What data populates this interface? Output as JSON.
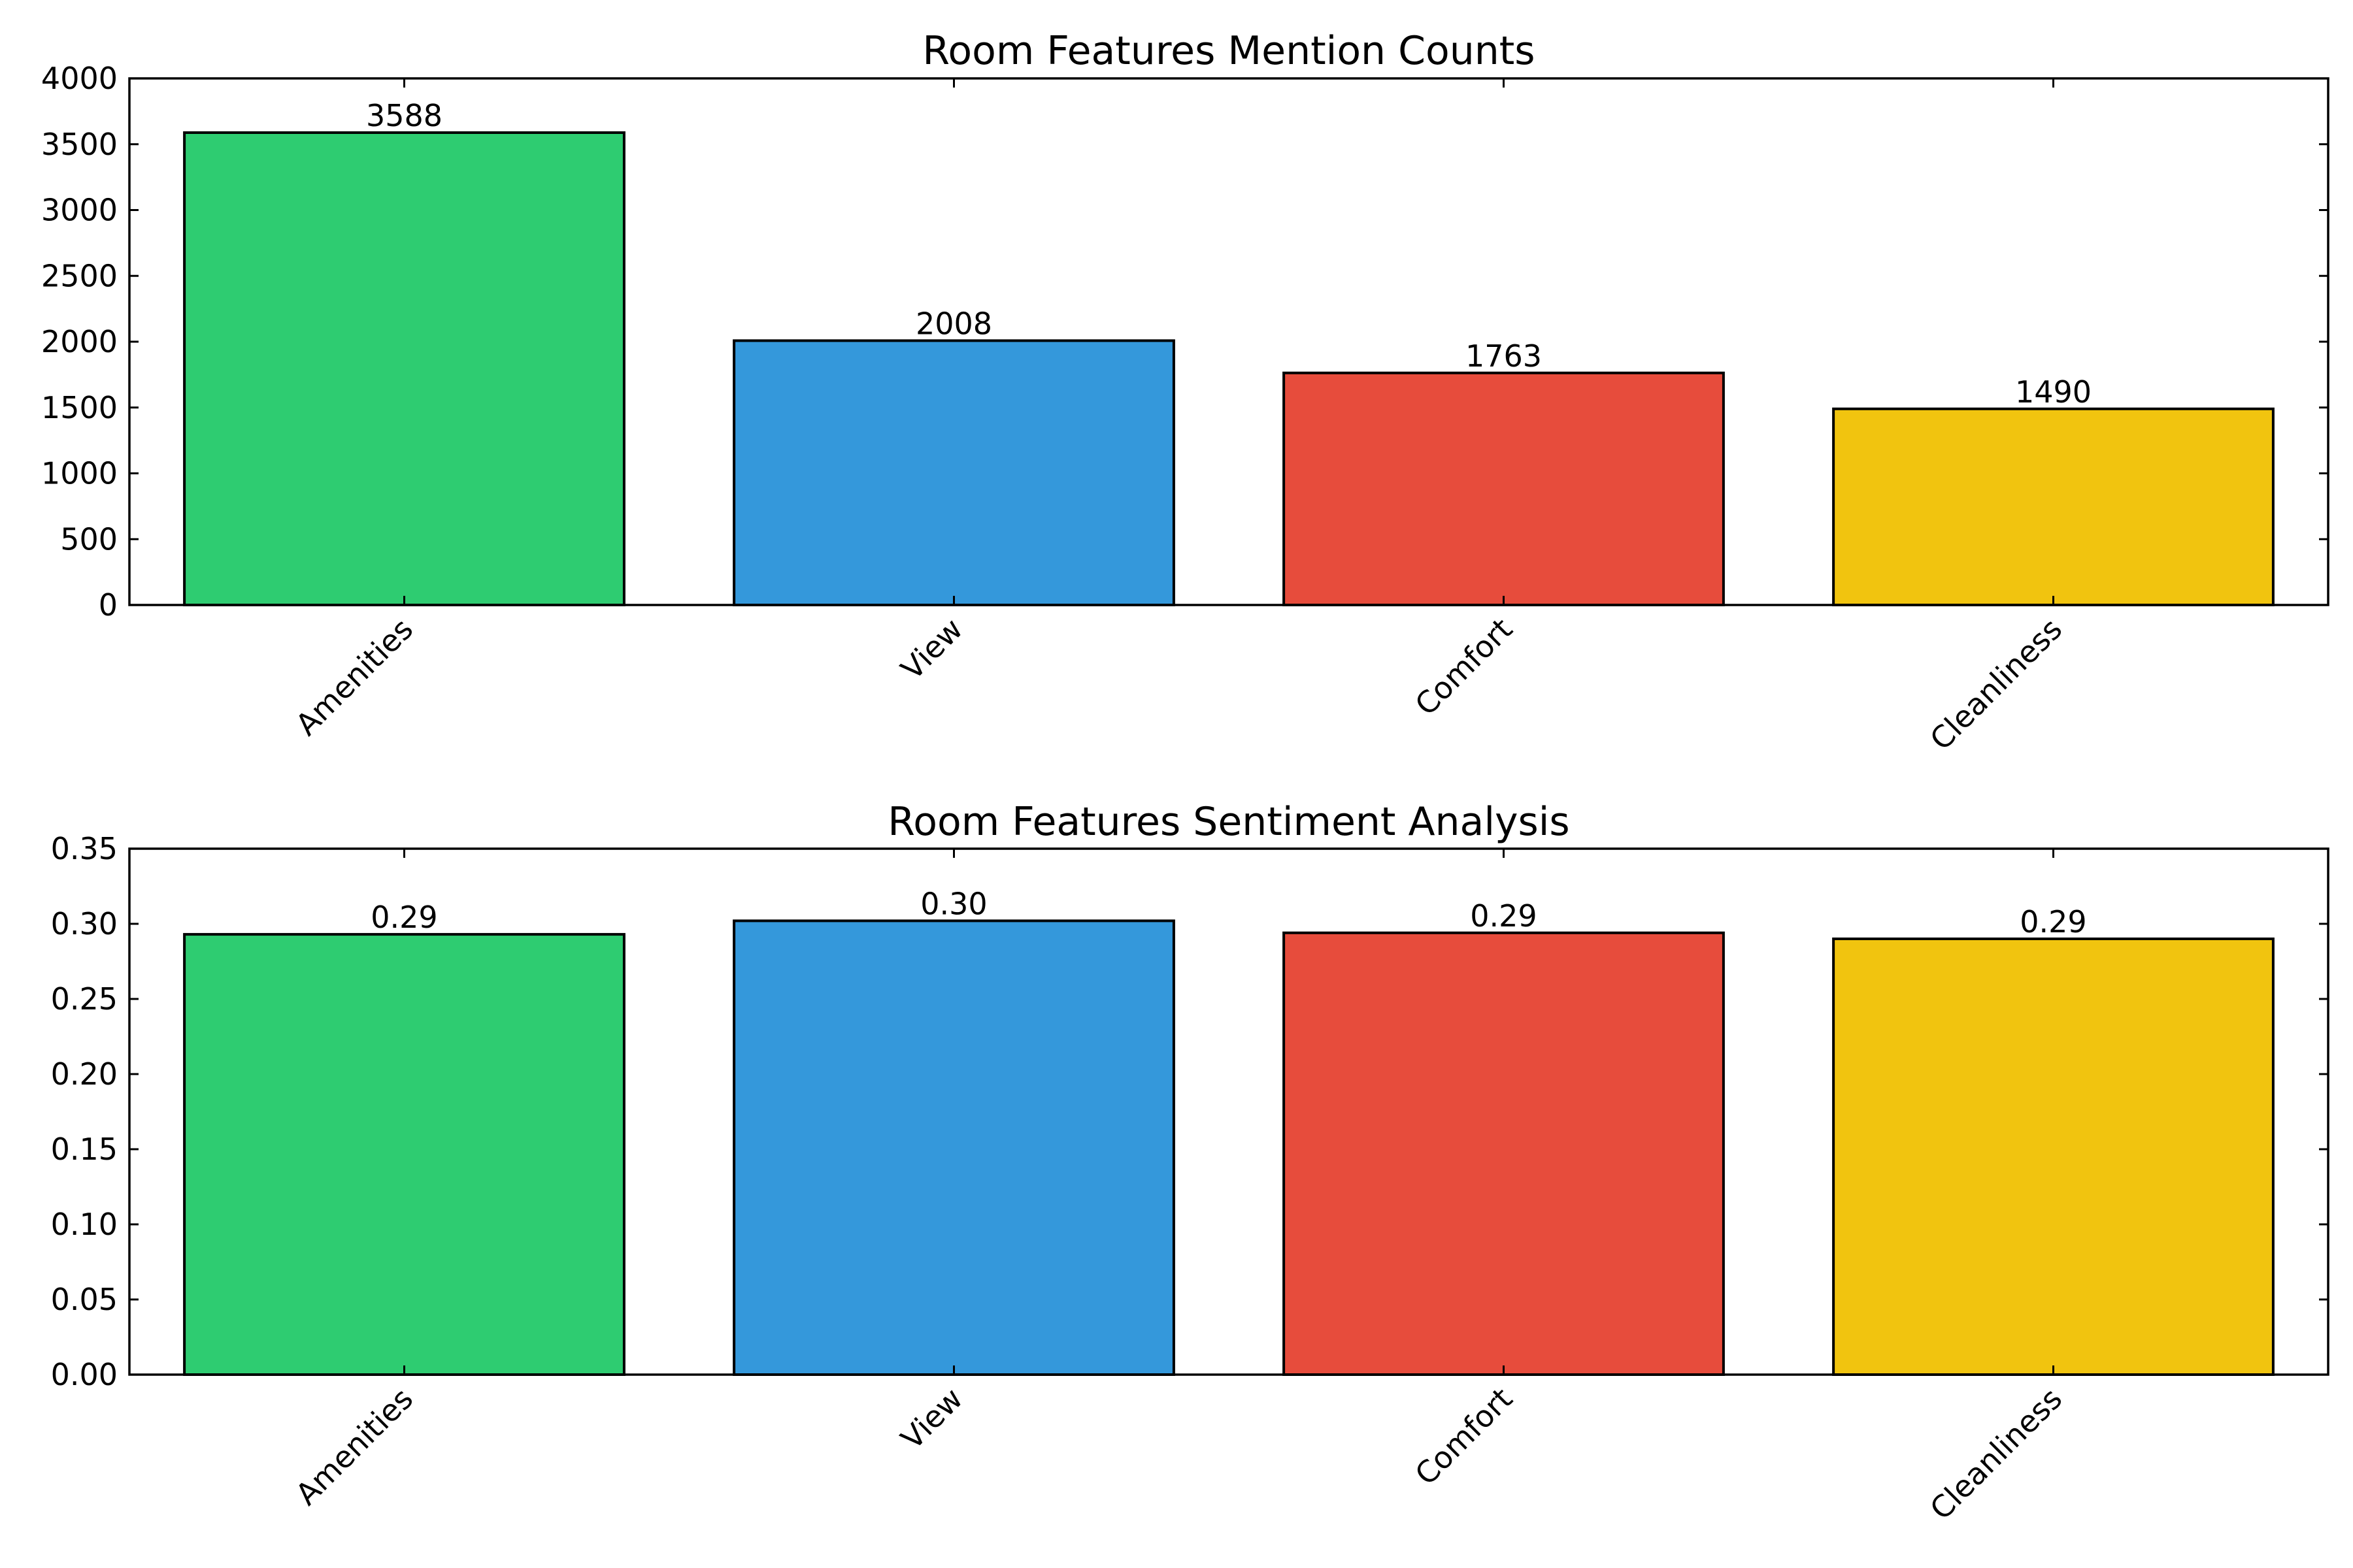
{
  "chart_data": [
    {
      "type": "bar",
      "title": "Room Features Mention Counts",
      "xlabel": "",
      "ylabel": "",
      "categories": [
        "Amenities",
        "View",
        "Comfort",
        "Cleanliness"
      ],
      "values": [
        3588,
        2008,
        1763,
        1490
      ],
      "value_labels": [
        "3588",
        "2008",
        "1763",
        "1490"
      ],
      "colors": [
        "#2ecc71",
        "#3498db",
        "#e74c3c",
        "#f1c40f"
      ],
      "ylim": [
        0,
        4000
      ],
      "yticks": [
        0,
        500,
        1000,
        1500,
        2000,
        2500,
        3000,
        3500,
        4000
      ],
      "ytick_labels": [
        "0",
        "500",
        "1000",
        "1500",
        "2000",
        "2500",
        "3000",
        "3500",
        "4000"
      ],
      "grid": false,
      "legend": "none"
    },
    {
      "type": "bar",
      "title": "Room Features Sentiment Analysis",
      "xlabel": "",
      "ylabel": "",
      "categories": [
        "Amenities",
        "View",
        "Comfort",
        "Cleanliness"
      ],
      "values": [
        0.293,
        0.302,
        0.294,
        0.29
      ],
      "value_labels": [
        "0.29",
        "0.30",
        "0.29",
        "0.29"
      ],
      "colors": [
        "#2ecc71",
        "#3498db",
        "#e74c3c",
        "#f1c40f"
      ],
      "ylim": [
        0,
        0.35
      ],
      "yticks": [
        0,
        0.05,
        0.1,
        0.15,
        0.2,
        0.25,
        0.3,
        0.35
      ],
      "ytick_labels": [
        "0.00",
        "0.05",
        "0.10",
        "0.15",
        "0.20",
        "0.25",
        "0.30",
        "0.35"
      ],
      "grid": false,
      "legend": "none"
    }
  ]
}
